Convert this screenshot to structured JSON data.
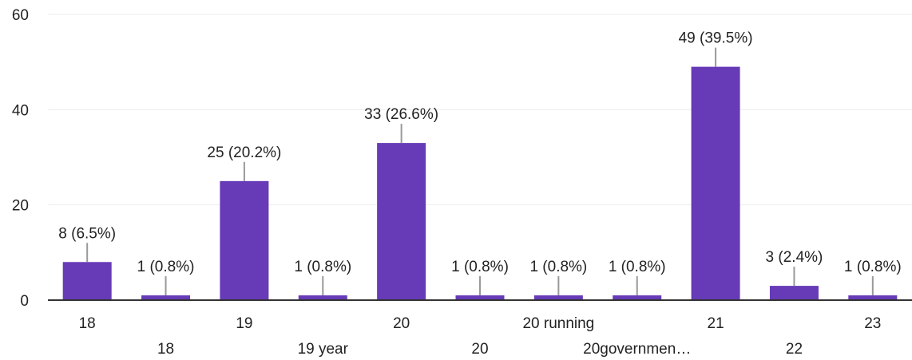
{
  "chart_data": {
    "type": "bar",
    "categories": [
      "18",
      "18",
      "19",
      "19 year",
      "20",
      "20",
      "20 running",
      "20governmen…",
      "21",
      "22",
      "23"
    ],
    "values": [
      8,
      1,
      25,
      1,
      33,
      1,
      1,
      1,
      49,
      3,
      1
    ],
    "data_labels": [
      "8 (6.5%)",
      "1 (0.8%)",
      "25 (20.2%)",
      "1 (0.8%)",
      "33 (26.6%)",
      "1 (0.8%)",
      "1 (0.8%)",
      "1 (0.8%)",
      "49 (39.5%)",
      "3 (2.4%)",
      "1 (0.8%)"
    ],
    "yticks": [
      0,
      20,
      40,
      60
    ],
    "ylim": [
      0,
      60
    ],
    "grid": true,
    "bar_color": "#673ab7",
    "grid_color": "#eeeeee",
    "axis_color": "#333333",
    "connector_color": "#999999"
  }
}
